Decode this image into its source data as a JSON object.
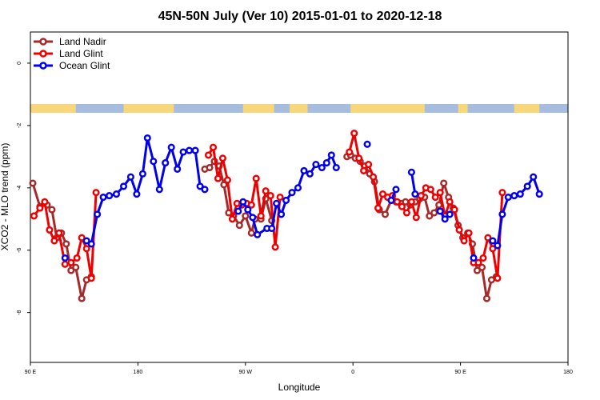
{
  "chart_data": {
    "type": "line",
    "title": "45N-50N July (Ver 10)   2015-01-01 to 2020-12-18",
    "xlabel": "Longitude",
    "ylabel": "XCO2 - MLO trend (ppm)",
    "x_ticks": [
      {
        "value": 0,
        "label": "90 E"
      },
      {
        "value": 90,
        "label": "180"
      },
      {
        "value": 180,
        "label": "90 W"
      },
      {
        "value": 270,
        "label": "0"
      },
      {
        "value": 360,
        "label": "90 E"
      },
      {
        "value": 450,
        "label": "180"
      }
    ],
    "y_ticks": [
      0,
      -2,
      -4,
      -6,
      -8
    ],
    "xlim": [
      0,
      450
    ],
    "ylim": [
      -9.6,
      1.0
    ],
    "legend_position": "top-left",
    "land_band_colors": {
      "ocean": "#a7bde0",
      "land": "#f7d77a"
    },
    "land_segments": [
      [
        0,
        38
      ],
      [
        78,
        120
      ],
      [
        178,
        204
      ],
      [
        217,
        232
      ],
      [
        268,
        330
      ],
      [
        358,
        366
      ],
      [
        405,
        426
      ]
    ],
    "series": [
      {
        "name": "Land Nadir",
        "color": "#a52a2a",
        "segments": [
          [
            [
              2,
              -3.85
            ],
            [
              8,
              -4.6
            ],
            [
              14,
              -4.55
            ],
            [
              18,
              -4.7
            ],
            [
              22,
              -5.6
            ],
            [
              26,
              -5.45
            ],
            [
              30,
              -5.8
            ],
            [
              34,
              -6.65
            ],
            [
              38,
              -6.55
            ],
            [
              43,
              -7.55
            ],
            [
              47,
              -6.95
            ],
            [
              51,
              -6.85
            ]
          ],
          [
            [
              146,
              -3.4
            ],
            [
              150,
              -3.35
            ],
            [
              154,
              -3.15
            ],
            [
              158,
              -3.3
            ],
            [
              162,
              -3.9
            ],
            [
              166,
              -4.8
            ],
            [
              170,
              -4.9
            ],
            [
              175,
              -5.2
            ],
            [
              180,
              -4.9
            ],
            [
              185,
              -5.45
            ],
            [
              188,
              -5.0
            ],
            [
              193,
              -5.0
            ],
            [
              197,
              -4.35
            ],
            [
              202,
              -5.05
            ]
          ],
          [
            [
              265,
              -3.0
            ],
            [
              268,
              -2.95
            ],
            [
              272,
              -3.05
            ],
            [
              276,
              -3.15
            ],
            [
              280,
              -3.3
            ],
            [
              284,
              -3.55
            ],
            [
              288,
              -3.8
            ],
            [
              292,
              -4.7
            ],
            [
              297,
              -4.85
            ],
            [
              302,
              -4.4
            ],
            [
              306,
              -4.45
            ],
            [
              310,
              -4.5
            ],
            [
              314,
              -4.45
            ],
            [
              318,
              -4.55
            ],
            [
              322,
              -4.45
            ],
            [
              326,
              -4.35
            ],
            [
              330,
              -4.3
            ],
            [
              334,
              -4.9
            ],
            [
              338,
              -4.8
            ],
            [
              342,
              -4.55
            ],
            [
              346,
              -3.85
            ],
            [
              350,
              -4.3
            ],
            [
              354,
              -4.65
            ],
            [
              358,
              -5.2
            ],
            [
              362,
              -5.6
            ],
            [
              366,
              -5.45
            ],
            [
              370,
              -5.8
            ],
            [
              374,
              -6.65
            ],
            [
              378,
              -6.55
            ],
            [
              382,
              -7.55
            ],
            [
              386,
              -6.95
            ],
            [
              390,
              -6.85
            ]
          ]
        ]
      },
      {
        "name": "Land Glint",
        "color": "#ee0000",
        "segments": [
          [
            [
              3,
              -4.9
            ],
            [
              8,
              -4.65
            ],
            [
              12,
              -4.45
            ],
            [
              16,
              -5.35
            ],
            [
              20,
              -5.7
            ],
            [
              24,
              -5.45
            ],
            [
              29,
              -6.45
            ],
            [
              34,
              -6.4
            ],
            [
              39,
              -6.25
            ],
            [
              43,
              -5.6
            ],
            [
              47,
              -5.95
            ],
            [
              51,
              -6.9
            ],
            [
              55,
              -4.15
            ]
          ],
          [
            [
              149,
              -2.95
            ],
            [
              153,
              -2.7
            ],
            [
              157,
              -3.7
            ],
            [
              161,
              -3.05
            ],
            [
              165,
              -3.75
            ],
            [
              169,
              -5.0
            ],
            [
              173,
              -4.5
            ],
            [
              177,
              -4.55
            ],
            [
              181,
              -4.5
            ],
            [
              185,
              -4.55
            ],
            [
              189,
              -3.7
            ],
            [
              193,
              -4.9
            ],
            [
              197,
              -4.1
            ],
            [
              201,
              -4.25
            ],
            [
              205,
              -5.9
            ],
            [
              209,
              -4.3
            ]
          ],
          [
            [
              267,
              -2.85
            ],
            [
              271,
              -2.25
            ],
            [
              275,
              -3.05
            ],
            [
              279,
              -3.45
            ],
            [
              283,
              -3.25
            ],
            [
              287,
              -3.65
            ],
            [
              291,
              -4.65
            ],
            [
              295,
              -4.2
            ],
            [
              299,
              -4.3
            ],
            [
              303,
              -4.25
            ],
            [
              307,
              -4.45
            ],
            [
              311,
              -4.6
            ],
            [
              315,
              -4.8
            ],
            [
              319,
              -4.45
            ],
            [
              323,
              -4.95
            ],
            [
              327,
              -4.25
            ],
            [
              331,
              -4.0
            ],
            [
              335,
              -4.05
            ],
            [
              339,
              -4.3
            ],
            [
              343,
              -4.15
            ],
            [
              347,
              -4.9
            ],
            [
              351,
              -4.45
            ],
            [
              355,
              -4.7
            ],
            [
              359,
              -5.35
            ],
            [
              363,
              -5.7
            ],
            [
              367,
              -5.45
            ],
            [
              371,
              -6.4
            ],
            [
              375,
              -6.4
            ],
            [
              379,
              -6.25
            ],
            [
              383,
              -5.6
            ],
            [
              387,
              -5.95
            ],
            [
              391,
              -6.9
            ],
            [
              395,
              -4.15
            ]
          ]
        ]
      },
      {
        "name": "Ocean Glint",
        "color": "#0000ee",
        "segments": [
          [
            [
              29,
              -6.25
            ]
          ],
          [
            [
              47,
              -5.7
            ],
            [
              51,
              -5.8
            ],
            [
              56,
              -4.85
            ],
            [
              61,
              -4.3
            ],
            [
              66,
              -4.25
            ],
            [
              72,
              -4.2
            ],
            [
              78,
              -3.95
            ],
            [
              84,
              -3.65
            ],
            [
              89,
              -4.2
            ],
            [
              94,
              -3.55
            ],
            [
              98,
              -2.4
            ],
            [
              103,
              -3.15
            ],
            [
              108,
              -4.05
            ],
            [
              113,
              -3.2
            ],
            [
              118,
              -2.7
            ],
            [
              123,
              -3.4
            ],
            [
              128,
              -2.85
            ],
            [
              133,
              -2.8
            ],
            [
              138,
              -2.8
            ],
            [
              142,
              -3.95
            ],
            [
              146,
              -4.05
            ]
          ],
          [
            [
              174,
              -4.75
            ],
            [
              178,
              -4.45
            ],
            [
              182,
              -4.7
            ],
            [
              186,
              -4.95
            ],
            [
              190,
              -5.5
            ],
            [
              198,
              -5.3
            ],
            [
              202,
              -5.3
            ],
            [
              206,
              -4.5
            ],
            [
              210,
              -4.85
            ],
            [
              214,
              -4.4
            ],
            [
              219,
              -4.15
            ],
            [
              224,
              -4.0
            ],
            [
              229,
              -3.45
            ],
            [
              234,
              -3.55
            ],
            [
              239,
              -3.25
            ],
            [
              244,
              -3.35
            ],
            [
              248,
              -3.2
            ],
            [
              252,
              -2.95
            ],
            [
              256,
              -3.35
            ]
          ],
          [
            [
              282,
              -2.6
            ]
          ],
          [
            [
              302,
              -4.4
            ],
            [
              306,
              -4.05
            ]
          ],
          [
            [
              319,
              -3.5
            ],
            [
              322,
              -4.2
            ]
          ],
          [
            [
              343,
              -4.75
            ],
            [
              347,
              -5.0
            ],
            [
              351,
              -4.85
            ]
          ],
          [
            [
              387,
              -5.7
            ],
            [
              391,
              -5.85
            ],
            [
              395,
              -4.85
            ],
            [
              400,
              -4.3
            ],
            [
              405,
              -4.25
            ],
            [
              410,
              -4.2
            ],
            [
              416,
              -3.95
            ],
            [
              421,
              -3.65
            ],
            [
              426,
              -4.2
            ]
          ],
          [
            [
              371,
              -6.25
            ]
          ]
        ]
      }
    ]
  }
}
